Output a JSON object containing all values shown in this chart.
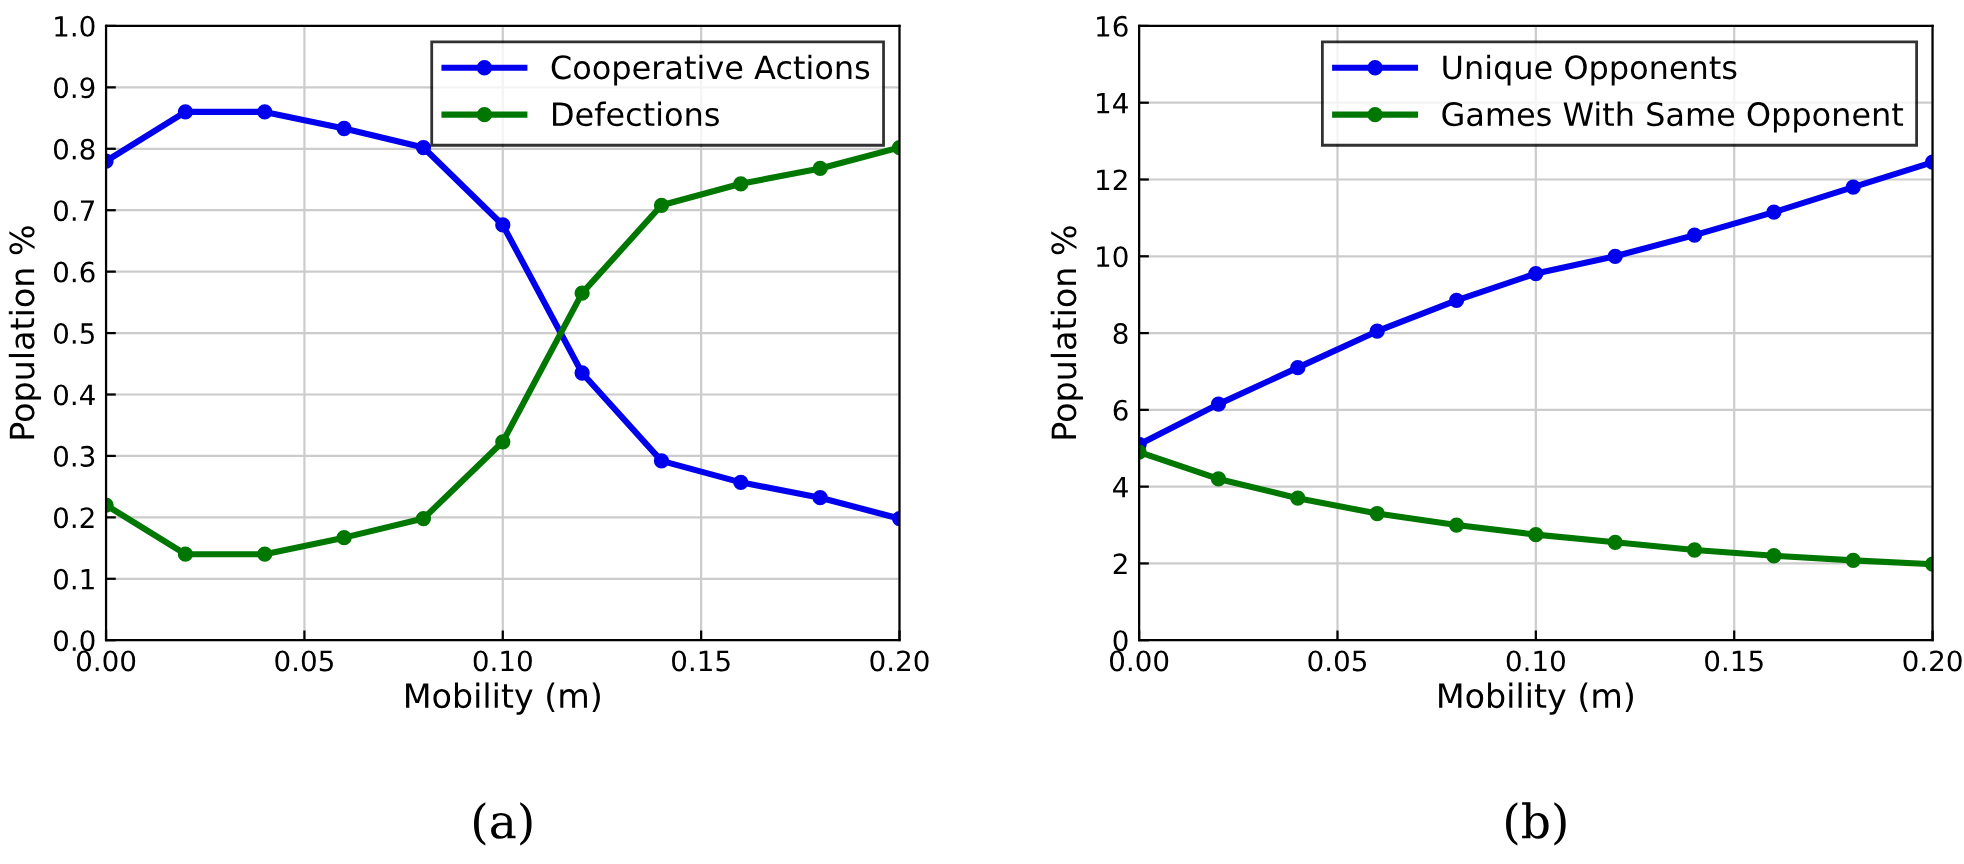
{
  "chart_data": [
    {
      "type": "line",
      "xlabel": "Mobility (m)",
      "ylabel": "Population %",
      "annotations": [
        "(a)"
      ],
      "x": [
        0.0,
        0.02,
        0.04,
        0.06,
        0.08,
        0.1,
        0.12,
        0.14,
        0.16,
        0.18,
        0.2
      ],
      "series": [
        {
          "name": "Cooperative Actions",
          "color": "#0000ee",
          "values": [
            0.78,
            0.86,
            0.86,
            0.833,
            0.802,
            0.676,
            0.435,
            0.292,
            0.257,
            0.232,
            0.198
          ]
        },
        {
          "name": "Defections",
          "color": "#007700",
          "values": [
            0.22,
            0.14,
            0.14,
            0.167,
            0.198,
            0.323,
            0.565,
            0.708,
            0.743,
            0.768,
            0.802
          ]
        }
      ],
      "xlim": [
        0.0,
        0.2
      ],
      "xticks": [
        {
          "value": 0,
          "label": "0.00"
        },
        {
          "value": 0.05,
          "label": "0.05"
        },
        {
          "value": 0.1,
          "label": "0.10"
        },
        {
          "value": 0.15,
          "label": "0.15"
        },
        {
          "value": 0.2,
          "label": "0.20"
        }
      ],
      "ylim": [
        0.0,
        1.0
      ],
      "yticks": [
        {
          "value": 0,
          "label": "0.0"
        },
        0.1,
        0.2,
        0.3,
        0.4,
        0.5,
        0.6,
        0.7,
        0.8,
        0.9,
        {
          "value": 1,
          "label": "1.0"
        }
      ],
      "grid": true,
      "legend": "top right",
      "marker": "circle",
      "line_style": "solid"
    },
    {
      "type": "line",
      "xlabel": "Mobility (m)",
      "ylabel": "Population %",
      "annotations": [
        "(b)"
      ],
      "x": [
        0.0,
        0.02,
        0.04,
        0.06,
        0.08,
        0.1,
        0.12,
        0.14,
        0.16,
        0.18,
        0.2
      ],
      "series": [
        {
          "name": "Unique Opponents",
          "color": "#0000ee",
          "values": [
            5.1,
            6.15,
            7.1,
            8.05,
            8.85,
            9.55,
            10.0,
            10.55,
            11.15,
            11.8,
            12.45
          ]
        },
        {
          "name": "Games With Same Opponent",
          "color": "#007700",
          "values": [
            4.9,
            4.2,
            3.7,
            3.3,
            3.0,
            2.75,
            2.55,
            2.35,
            2.2,
            2.08,
            1.98
          ]
        }
      ],
      "xlim": [
        0.0,
        0.2
      ],
      "xticks": [
        {
          "value": 0,
          "label": "0.00"
        },
        {
          "value": 0.05,
          "label": "0.05"
        },
        {
          "value": 0.1,
          "label": "0.10"
        },
        {
          "value": 0.15,
          "label": "0.15"
        },
        {
          "value": 0.2,
          "label": "0.20"
        }
      ],
      "ylim": [
        0,
        16
      ],
      "yticks": [
        0,
        2,
        4,
        6,
        8,
        10,
        12,
        14,
        16
      ],
      "grid": true,
      "legend": "top right",
      "marker": "circle",
      "line_style": "solid"
    }
  ]
}
